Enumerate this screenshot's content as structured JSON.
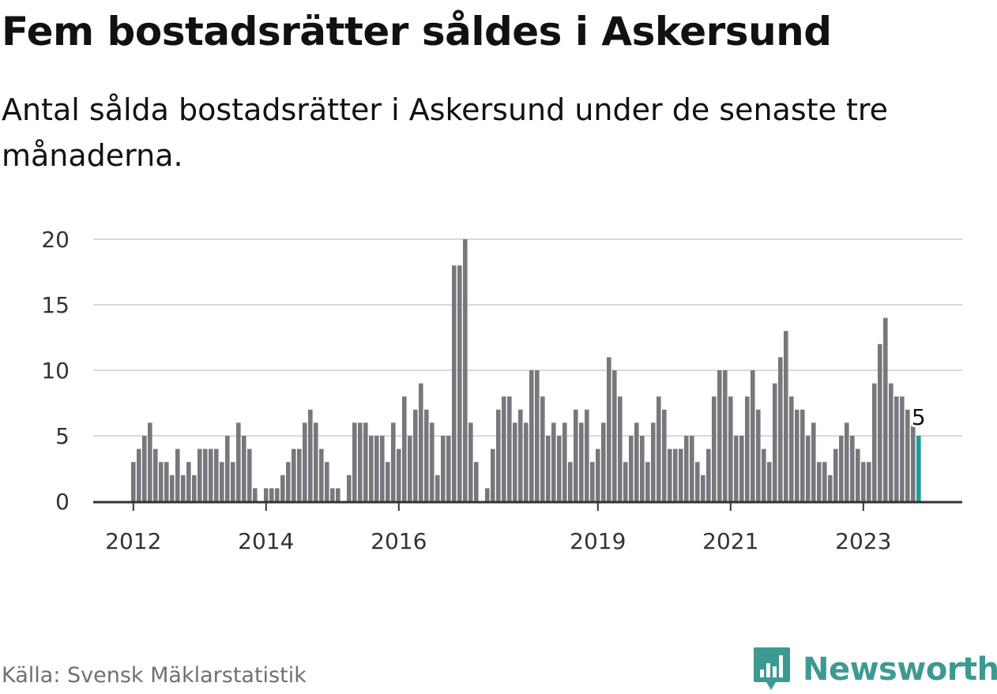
{
  "title": "Fem bostadsrätter såldes i Askersund",
  "subtitle": "Antal sålda bostadsrätter i Askersund under de senaste tre månaderna.",
  "source": "Källa: Svensk Mäklarstatistik",
  "brand": {
    "name": "Newsworthy",
    "icon": "newsworthy-logo-icon",
    "color": "#3d9a93"
  },
  "colors": {
    "bar": "#77777d",
    "highlight": "#1a9e96",
    "grid": "#d9d9d9",
    "axis": "#333333"
  },
  "chart_data": {
    "type": "bar",
    "x_start": "2012-01",
    "x_step": "month",
    "ylim": [
      0,
      20
    ],
    "yticks": [
      "0",
      "5",
      "10",
      "15",
      "20"
    ],
    "ytick_values": [
      0,
      5,
      10,
      15,
      20
    ],
    "xticks": [
      {
        "label": "2012",
        "index": 0
      },
      {
        "label": "2014",
        "index": 24
      },
      {
        "label": "2016",
        "index": 48
      },
      {
        "label": "2019",
        "index": 84
      },
      {
        "label": "2021",
        "index": 108
      },
      {
        "label": "2023",
        "index": 132
      }
    ],
    "grid": true,
    "values": [
      3,
      4,
      5,
      6,
      4,
      3,
      3,
      2,
      4,
      2,
      3,
      2,
      4,
      4,
      4,
      4,
      3,
      5,
      3,
      6,
      5,
      4,
      1,
      0,
      1,
      1,
      1,
      2,
      3,
      4,
      4,
      6,
      7,
      6,
      4,
      3,
      1,
      1,
      0,
      2,
      6,
      6,
      6,
      5,
      5,
      5,
      3,
      6,
      4,
      8,
      5,
      7,
      9,
      7,
      6,
      2,
      5,
      5,
      18,
      18,
      20,
      6,
      3,
      0,
      1,
      4,
      7,
      8,
      8,
      6,
      7,
      6,
      10,
      10,
      8,
      5,
      6,
      5,
      6,
      3,
      7,
      6,
      7,
      3,
      4,
      6,
      11,
      10,
      8,
      3,
      5,
      6,
      5,
      3,
      6,
      8,
      7,
      4,
      4,
      4,
      5,
      5,
      3,
      2,
      4,
      8,
      10,
      10,
      8,
      5,
      5,
      8,
      10,
      7,
      4,
      3,
      9,
      11,
      13,
      8,
      7,
      7,
      5,
      6,
      3,
      3,
      2,
      4,
      5,
      6,
      5,
      4,
      3,
      3,
      9,
      12,
      14,
      9,
      8,
      8,
      7,
      6,
      5
    ],
    "highlight_last": 1,
    "value_label": {
      "index": 142,
      "text": "5"
    }
  }
}
